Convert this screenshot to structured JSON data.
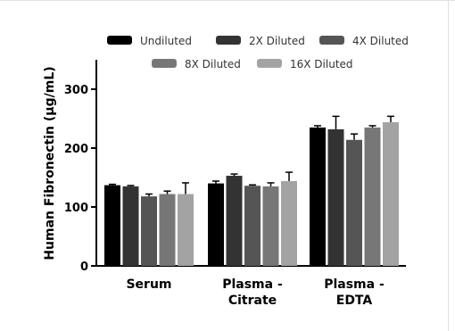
{
  "chart_data": {
    "type": "bar",
    "ylabel": "Human Fibronectin (μg/mL)",
    "ylim": [
      0,
      350
    ],
    "yticks": [
      0,
      100,
      200,
      300
    ],
    "categories": [
      "Serum",
      "Plasma - Citrate",
      "Plasma - EDTA"
    ],
    "category_lines": [
      [
        "Serum"
      ],
      [
        "Plasma -",
        "Citrate"
      ],
      [
        "Plasma -",
        "EDTA"
      ]
    ],
    "series": [
      {
        "name": "Undiluted",
        "color": "#000000",
        "values": [
          137,
          140,
          235
        ],
        "errors": [
          1.5,
          4,
          3
        ]
      },
      {
        "name": "2X Diluted",
        "color": "#333333",
        "values": [
          135,
          153,
          232
        ],
        "errors": [
          1.5,
          3,
          22
        ]
      },
      {
        "name": "4X Diluted",
        "color": "#555555",
        "values": [
          118,
          136,
          214
        ],
        "errors": [
          4,
          1.5,
          10
        ]
      },
      {
        "name": "8X Diluted",
        "color": "#777777",
        "values": [
          122,
          135,
          235
        ],
        "errors": [
          5,
          6,
          3
        ]
      },
      {
        "name": "16X Diluted",
        "color": "#a3a3a3",
        "values": [
          122,
          144,
          244
        ],
        "errors": [
          19,
          15,
          10
        ]
      }
    ],
    "legend_position": "top",
    "grid": false
  }
}
